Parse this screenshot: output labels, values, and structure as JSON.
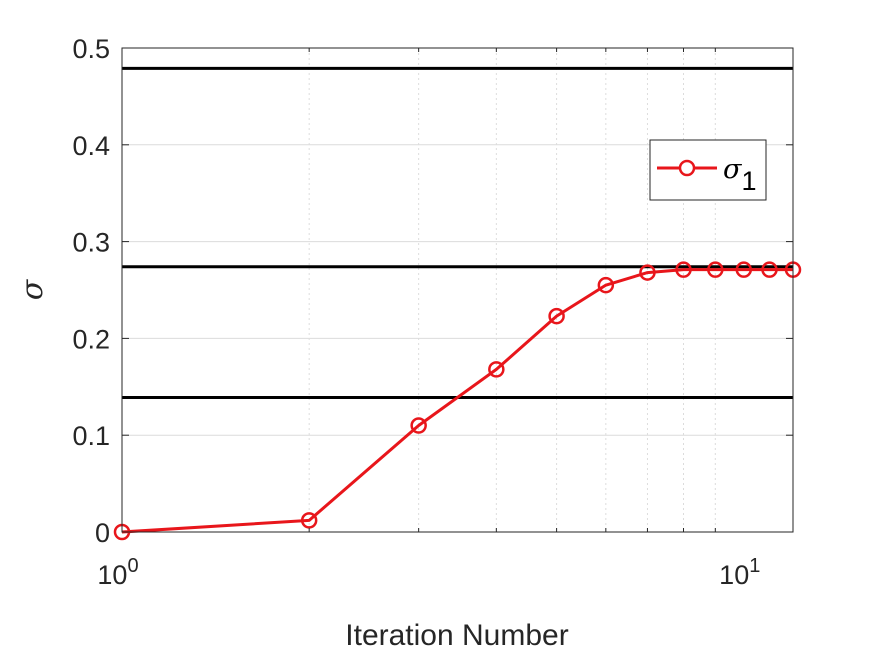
{
  "chart_data": {
    "type": "line",
    "xlabel": "Iteration Number",
    "ylabel": "σ",
    "xscale": "log",
    "xlim": [
      1,
      12
    ],
    "ylim": [
      0,
      0.5
    ],
    "grid": true,
    "x_tick_labels": [
      {
        "base": "10",
        "exp": "0",
        "value": 1
      },
      {
        "base": "10",
        "exp": "1",
        "value": 10
      }
    ],
    "y_ticks": [
      0,
      0.1,
      0.2,
      0.3,
      0.4,
      0.5
    ],
    "y_tick_labels": [
      "0",
      "0.1",
      "0.2",
      "0.3",
      "0.4",
      "0.5"
    ],
    "series": [
      {
        "name_symbol": "σ",
        "name_subscript": "1",
        "color": "#e8161b",
        "marker": "circle",
        "x": [
          1,
          2,
          3,
          4,
          5,
          6,
          7,
          8,
          9,
          10,
          11,
          12
        ],
        "y": [
          0.0,
          0.012,
          0.11,
          0.168,
          0.223,
          0.255,
          0.268,
          0.271,
          0.271,
          0.271,
          0.271,
          0.271
        ]
      }
    ],
    "reference_lines": {
      "color": "#000000",
      "y": [
        0.479,
        0.274,
        0.139
      ]
    },
    "legend_placement": "right"
  }
}
